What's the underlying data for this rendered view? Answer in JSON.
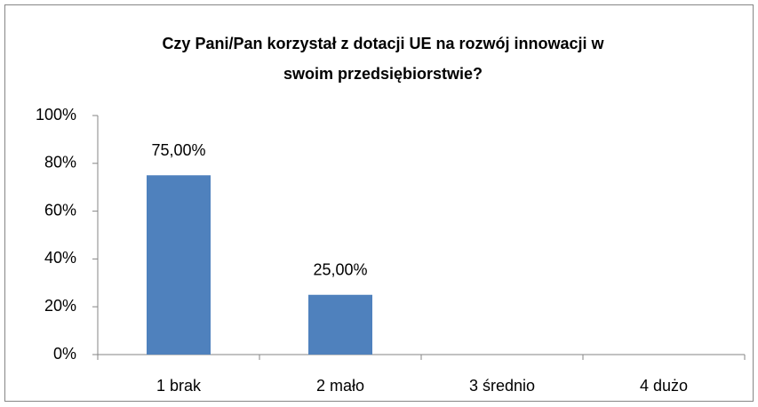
{
  "chart_data": {
    "type": "bar",
    "title": [
      "Czy Pani/Pan  korzystał z dotacji UE na rozwój innowacji w",
      "swoim przedsiębiorstwie?"
    ],
    "categories": [
      "1  brak",
      "2  mało",
      "3  średnio",
      "4  dużo"
    ],
    "values": [
      75,
      25,
      null,
      null
    ],
    "value_labels": [
      "75,00%",
      "25,00%",
      null,
      null
    ],
    "color": "#4f81bd",
    "ylim": [
      0,
      100
    ],
    "yticks": [
      {
        "value": 0,
        "label": "0%"
      },
      {
        "value": 20,
        "label": "20%"
      },
      {
        "value": 40,
        "label": "40%"
      },
      {
        "value": 60,
        "label": "60%"
      },
      {
        "value": 80,
        "label": "80%"
      },
      {
        "value": 100,
        "label": "100%"
      }
    ],
    "grid": false
  }
}
